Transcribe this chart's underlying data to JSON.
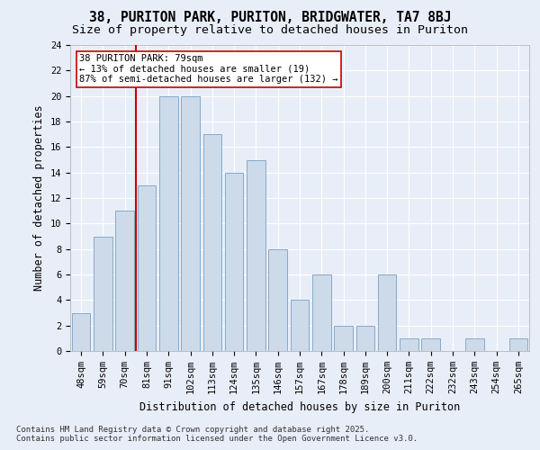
{
  "title_line1": "38, PURITON PARK, PURITON, BRIDGWATER, TA7 8BJ",
  "title_line2": "Size of property relative to detached houses in Puriton",
  "xlabel": "Distribution of detached houses by size in Puriton",
  "ylabel": "Number of detached properties",
  "categories": [
    "48sqm",
    "59sqm",
    "70sqm",
    "81sqm",
    "91sqm",
    "102sqm",
    "113sqm",
    "124sqm",
    "135sqm",
    "146sqm",
    "157sqm",
    "167sqm",
    "178sqm",
    "189sqm",
    "200sqm",
    "211sqm",
    "222sqm",
    "232sqm",
    "243sqm",
    "254sqm",
    "265sqm"
  ],
  "values": [
    3,
    9,
    11,
    13,
    20,
    20,
    17,
    14,
    15,
    8,
    4,
    6,
    2,
    2,
    6,
    1,
    1,
    0,
    1,
    0,
    1
  ],
  "bar_color": "#ccdaea",
  "bar_edge_color": "#88aac8",
  "vline_color": "#cc0000",
  "annotation_text": "38 PURITON PARK: 79sqm\n← 13% of detached houses are smaller (19)\n87% of semi-detached houses are larger (132) →",
  "annotation_box_edge": "#cc0000",
  "annotation_box_face": "#ffffff",
  "ylim": [
    0,
    24
  ],
  "yticks": [
    0,
    2,
    4,
    6,
    8,
    10,
    12,
    14,
    16,
    18,
    20,
    22,
    24
  ],
  "bg_color": "#e8eef8",
  "plot_bg_color": "#e8eef8",
  "footer_text": "Contains HM Land Registry data © Crown copyright and database right 2025.\nContains public sector information licensed under the Open Government Licence v3.0.",
  "title_fontsize": 10.5,
  "subtitle_fontsize": 9.5,
  "axis_label_fontsize": 8.5,
  "tick_fontsize": 7.5,
  "annotation_fontsize": 7.5,
  "footer_fontsize": 6.5
}
